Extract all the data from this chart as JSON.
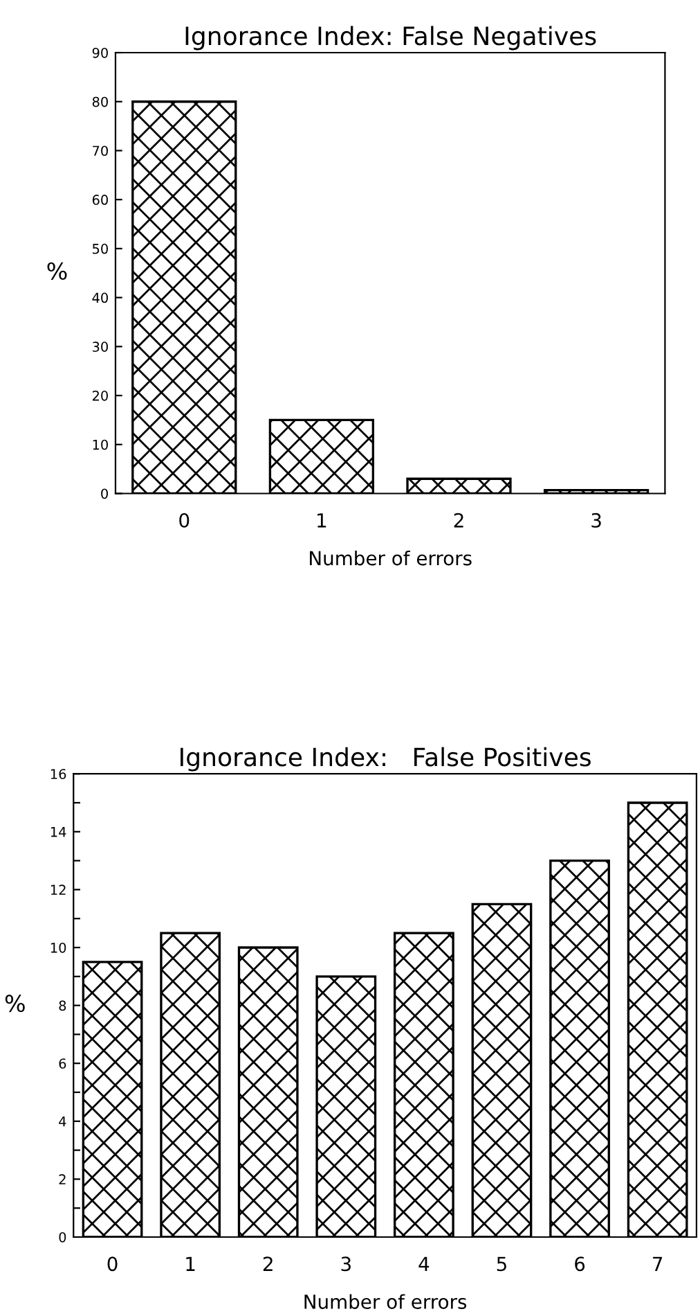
{
  "chart_data": [
    {
      "type": "bar",
      "title": "Ignorance Index: False Negatives",
      "xlabel": "Number of errors",
      "ylabel": "%",
      "categories": [
        "0",
        "1",
        "2",
        "3"
      ],
      "values": [
        80,
        15,
        3,
        0.7
      ],
      "color": "#000000",
      "ylim": [
        0,
        90
      ],
      "yticks": [
        0,
        10,
        20,
        30,
        40,
        50,
        60,
        70,
        80,
        90
      ],
      "grid": false,
      "legend": false
    },
    {
      "type": "bar",
      "title": "Ignorance Index:   False Positives",
      "xlabel": "Number of errors",
      "ylabel": "%",
      "categories": [
        "0",
        "1",
        "2",
        "3",
        "4",
        "5",
        "6",
        "7"
      ],
      "values": [
        9.5,
        10.5,
        10,
        9,
        10.5,
        11.5,
        13,
        15
      ],
      "color": "#000000",
      "ylim": [
        0,
        16
      ],
      "yticks": [
        0,
        {
          "value": 1,
          "label": null
        },
        2,
        {
          "value": 3,
          "label": null
        },
        4,
        {
          "value": 5,
          "label": null
        },
        6,
        {
          "value": 7,
          "label": null
        },
        8,
        {
          "value": 9,
          "label": null
        },
        10,
        {
          "value": 11,
          "label": null
        },
        12,
        {
          "value": 13,
          "label": null
        },
        14,
        {
          "value": 15,
          "label": null
        },
        16
      ],
      "grid": false,
      "legend": false
    }
  ]
}
